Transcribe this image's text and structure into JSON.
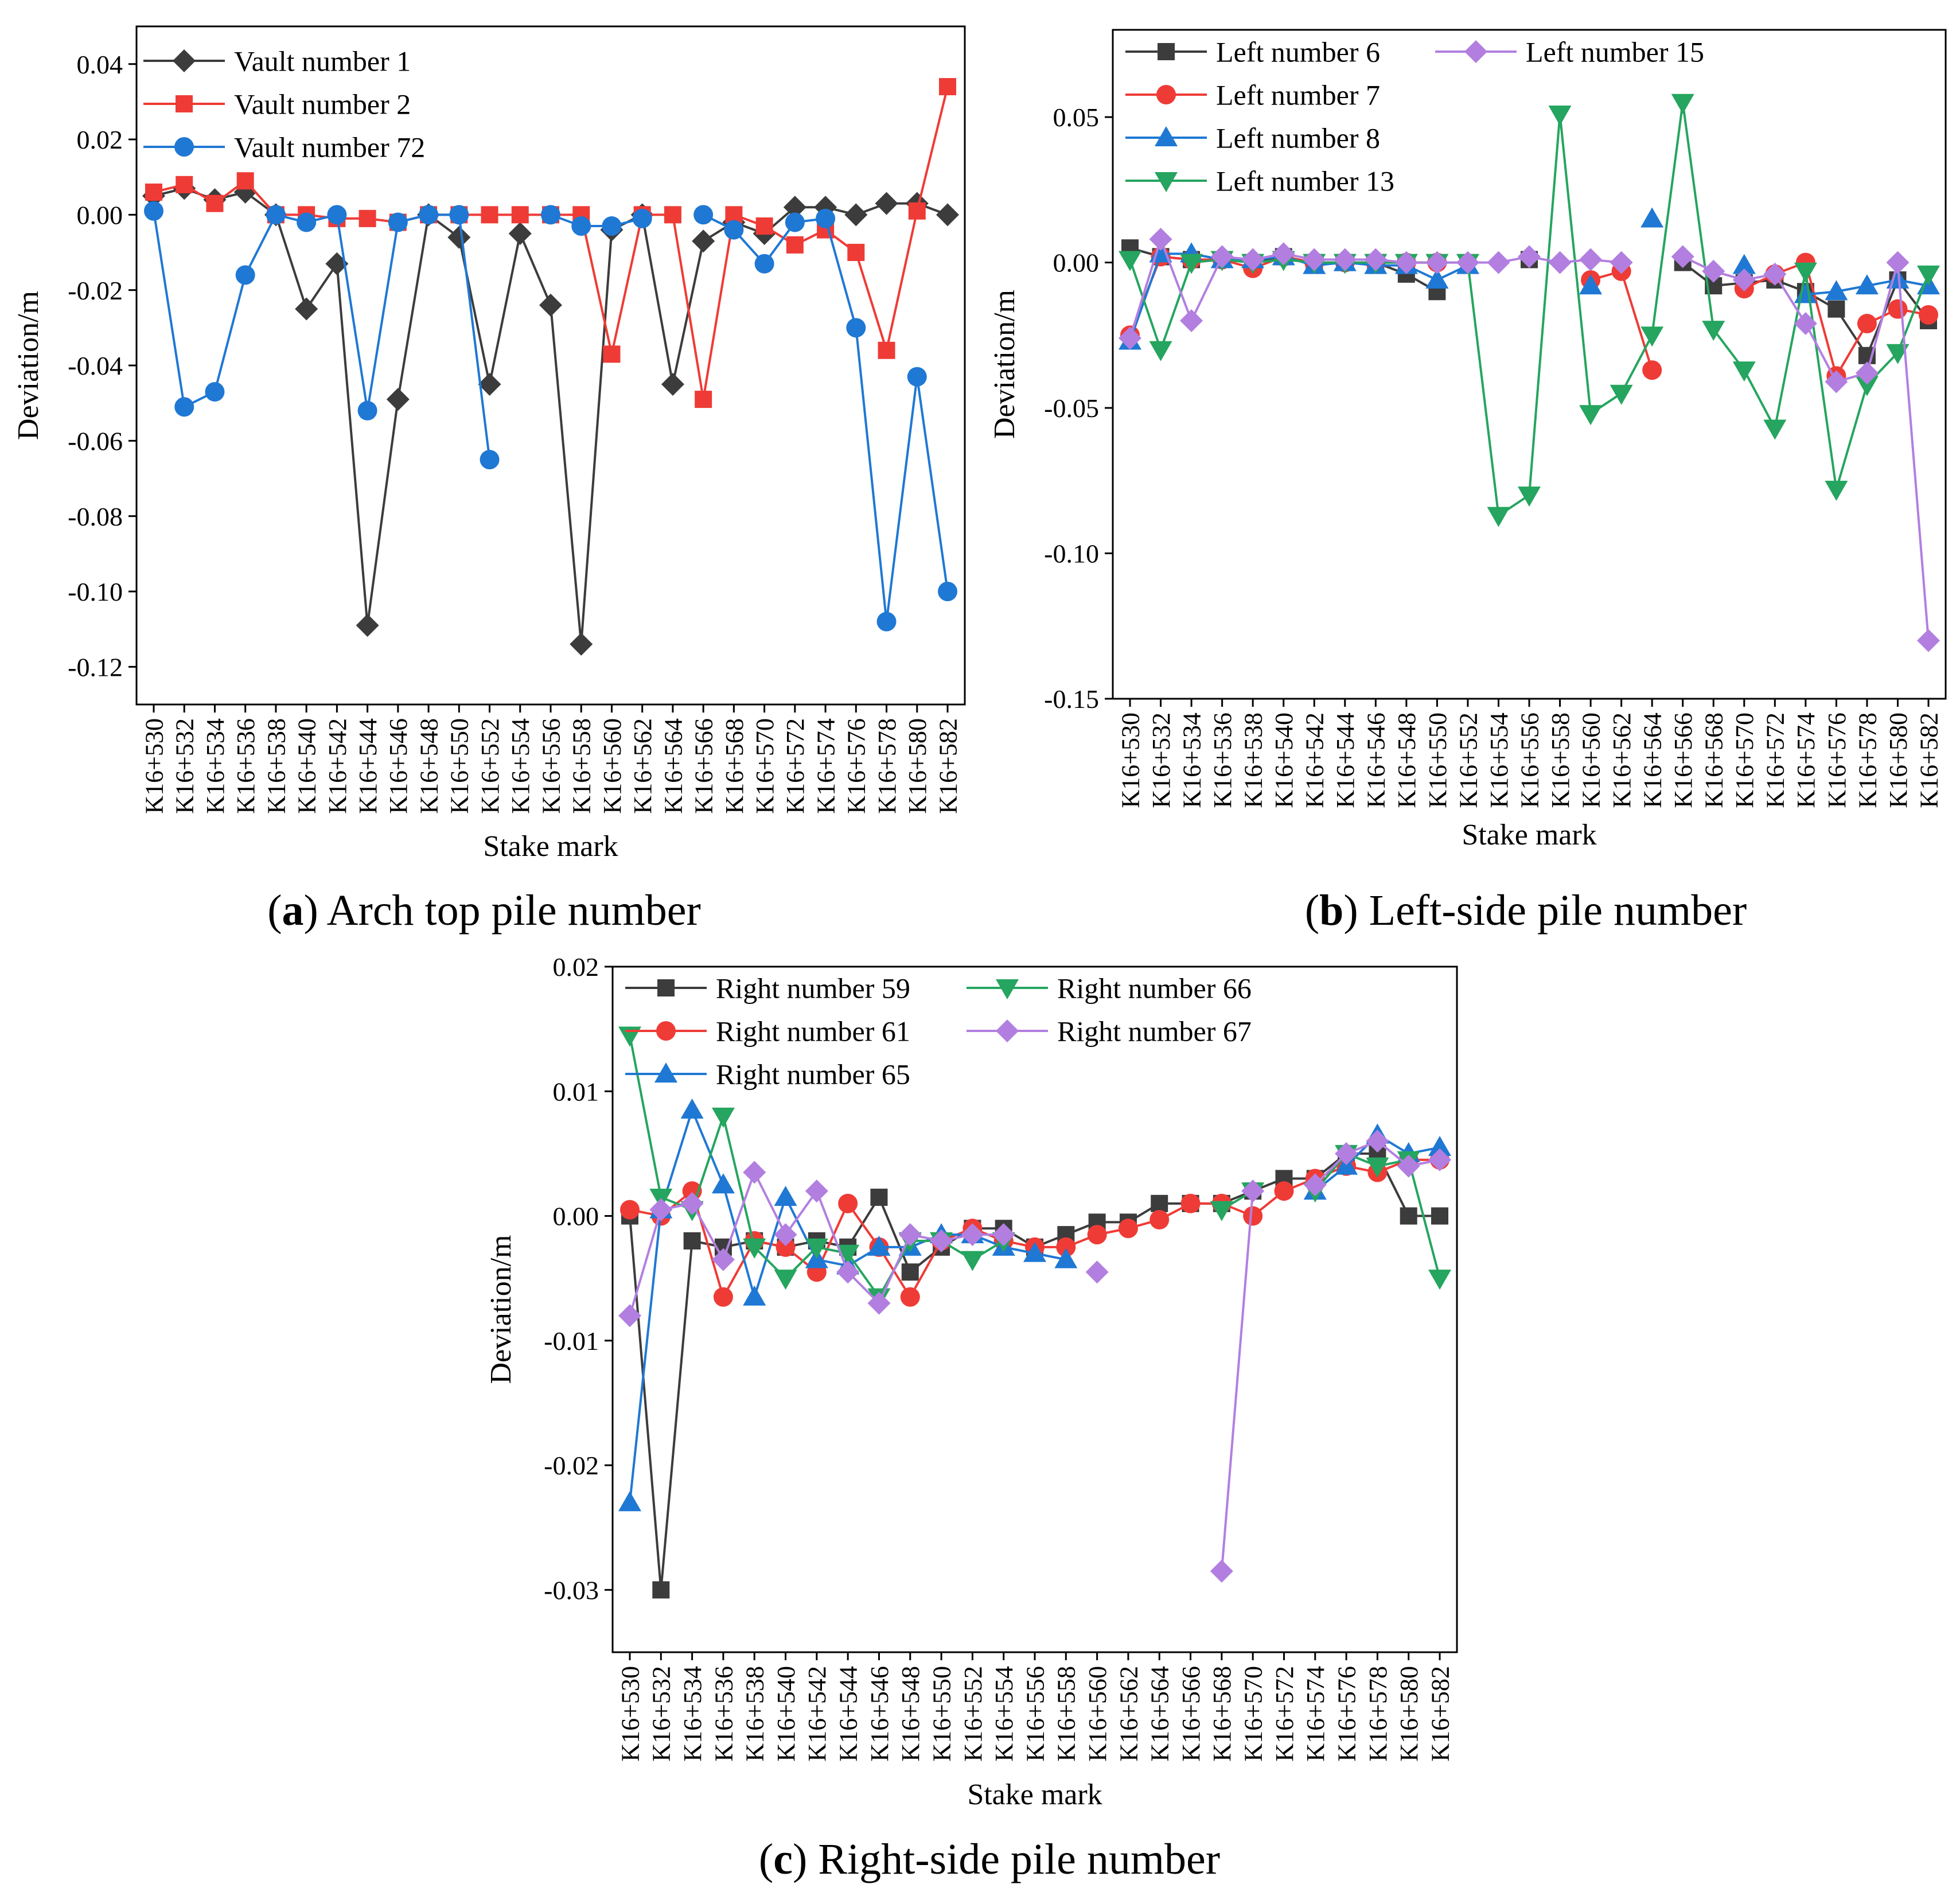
{
  "chart_data": [
    {
      "type": "line",
      "caption_letter": "a",
      "caption_text": "Arch top pile number",
      "xlabel": "Stake mark",
      "ylabel": "Deviation/m",
      "ylim": [
        -0.13,
        0.05
      ],
      "yticks": [
        0.04,
        0.02,
        0.0,
        -0.02,
        -0.04,
        -0.06,
        -0.08,
        -0.1,
        -0.12
      ],
      "ytick_labels": [
        "0.04",
        "0.02",
        "0.00",
        "-0.02",
        "-0.04",
        "-0.06",
        "-0.08",
        "-0.10",
        "-0.12"
      ],
      "categories": [
        "K16+530",
        "K16+532",
        "K16+534",
        "K16+536",
        "K16+538",
        "K16+540",
        "K16+542",
        "K16+544",
        "K16+546",
        "K16+548",
        "K16+550",
        "K16+552",
        "K16+554",
        "K16+556",
        "K16+558",
        "K16+560",
        "K16+562",
        "K16+564",
        "K16+566",
        "K16+568",
        "K16+570",
        "K16+572",
        "K16+574",
        "K16+576",
        "K16+578",
        "K16+580",
        "K16+582"
      ],
      "legend_position": "top-left",
      "grid": false,
      "series": [
        {
          "name": "Vault number 1",
          "color": "#3c3c3c",
          "marker": "diamond",
          "values": [
            0.005,
            0.007,
            0.004,
            0.006,
            0.0,
            -0.025,
            -0.013,
            -0.109,
            -0.049,
            0.0,
            -0.006,
            -0.045,
            -0.005,
            -0.024,
            -0.114,
            -0.004,
            0.0,
            -0.045,
            -0.007,
            -0.002,
            -0.005,
            0.002,
            0.002,
            0.0,
            0.003,
            0.003,
            0.0
          ]
        },
        {
          "name": "Vault number 2",
          "color": "#ef3b36",
          "marker": "square",
          "values": [
            0.006,
            0.008,
            0.003,
            0.009,
            0.0,
            0.0,
            -0.001,
            -0.001,
            -0.002,
            0.0,
            0.0,
            0.0,
            0.0,
            0.0,
            0.0,
            -0.037,
            0.0,
            0.0,
            -0.049,
            0.0,
            -0.003,
            -0.008,
            -0.004,
            -0.01,
            -0.036,
            0.001,
            0.034
          ]
        },
        {
          "name": "Vault number 72",
          "color": "#1f78d4",
          "marker": "circle",
          "values": [
            0.001,
            -0.051,
            -0.047,
            -0.016,
            0.0,
            -0.002,
            0.0,
            -0.052,
            -0.002,
            0.0,
            0.0,
            -0.065,
            null,
            0.0,
            -0.003,
            -0.003,
            -0.001,
            null,
            0.0,
            -0.004,
            -0.013,
            -0.002,
            -0.001,
            -0.03,
            -0.108,
            -0.043,
            -0.1
          ]
        }
      ]
    },
    {
      "type": "line",
      "caption_letter": "b",
      "caption_text": "Left-side pile number",
      "xlabel": "Stake mark",
      "ylabel": "Deviation/m",
      "ylim": [
        -0.15,
        0.08
      ],
      "yticks": [
        0.05,
        0.0,
        -0.05,
        -0.1,
        -0.15
      ],
      "ytick_labels": [
        "0.05",
        "0.00",
        "-0.05",
        "-0.10",
        "-0.15"
      ],
      "categories": [
        "K16+530",
        "K16+532",
        "K16+534",
        "K16+536",
        "K16+538",
        "K16+540",
        "K16+542",
        "K16+544",
        "K16+546",
        "K16+548",
        "K16+550",
        "K16+552",
        "K16+554",
        "K16+556",
        "K16+558",
        "K16+560",
        "K16+562",
        "K16+564",
        "K16+566",
        "K16+568",
        "K16+570",
        "K16+572",
        "K16+574",
        "K16+576",
        "K16+578",
        "K16+580",
        "K16+582"
      ],
      "legend_position": "top",
      "grid": false,
      "series": [
        {
          "name": "Left number 6",
          "color": "#3c3c3c",
          "marker": "square",
          "values": [
            0.005,
            0.002,
            0.001,
            0.001,
            0.0,
            0.002,
            0.0,
            0.0,
            0.0,
            -0.004,
            -0.01,
            null,
            null,
            0.001,
            null,
            null,
            null,
            null,
            0.0,
            -0.008,
            -0.007,
            -0.006,
            -0.01,
            -0.016,
            -0.032,
            -0.006,
            -0.02
          ]
        },
        {
          "name": "Left number 7",
          "color": "#ef3b36",
          "marker": "circle",
          "values": [
            -0.025,
            0.002,
            0.001,
            0.001,
            -0.002,
            0.002,
            0.0,
            0.0,
            0.0,
            0.0,
            0.0,
            null,
            null,
            null,
            null,
            -0.006,
            -0.003,
            -0.037,
            null,
            null,
            -0.009,
            -0.004,
            0.0,
            -0.039,
            -0.021,
            -0.016,
            -0.018
          ]
        },
        {
          "name": "Left number 8",
          "color": "#1f78d4",
          "marker": "triangle-up",
          "values": [
            -0.027,
            0.003,
            0.003,
            0.001,
            0.001,
            0.002,
            -0.001,
            0.0,
            -0.001,
            -0.001,
            -0.006,
            -0.001,
            null,
            null,
            null,
            -0.008,
            null,
            0.015,
            null,
            null,
            -0.001,
            null,
            -0.011,
            -0.01,
            -0.008,
            -0.006,
            -0.008
          ]
        },
        {
          "name": "Left number 13",
          "color": "#25a55f",
          "marker": "triangle-down",
          "values": [
            0.001,
            -0.03,
            0.0,
            0.001,
            0.0,
            0.001,
            0.0,
            0.0,
            0.0,
            0.0,
            0.0,
            0.0,
            -0.087,
            -0.08,
            0.051,
            -0.052,
            -0.045,
            -0.025,
            0.055,
            -0.023,
            -0.037,
            -0.057,
            -0.003,
            -0.078,
            -0.042,
            -0.031,
            -0.004
          ]
        },
        {
          "name": "Left number 15",
          "color": "#b27fe0",
          "marker": "diamond",
          "values": [
            -0.026,
            0.008,
            -0.02,
            0.002,
            0.001,
            0.003,
            0.001,
            0.001,
            0.001,
            0.0,
            0.0,
            0.0,
            0.0,
            0.002,
            0.0,
            0.001,
            0.0,
            null,
            0.002,
            -0.003,
            -0.006,
            -0.004,
            -0.021,
            -0.041,
            -0.038,
            0.0,
            -0.13
          ]
        }
      ]
    },
    {
      "type": "line",
      "caption_letter": "c",
      "caption_text": "Right-side pile number",
      "xlabel": "Stake mark",
      "ylabel": "Deviation/m",
      "ylim": [
        -0.035,
        0.02
      ],
      "yticks": [
        0.02,
        0.01,
        0.0,
        -0.01,
        -0.02,
        -0.03
      ],
      "ytick_labels": [
        "0.02",
        "0.01",
        "0.00",
        "-0.01",
        "-0.02",
        "-0.03"
      ],
      "categories": [
        "K16+530",
        "K16+532",
        "K16+534",
        "K16+536",
        "K16+538",
        "K16+540",
        "K16+542",
        "K16+544",
        "K16+546",
        "K16+548",
        "K16+550",
        "K16+552",
        "K16+554",
        "K16+556",
        "K16+558",
        "K16+560",
        "K16+562",
        "K16+564",
        "K16+566",
        "K16+568",
        "K16+570",
        "K16+572",
        "K16+574",
        "K16+576",
        "K16+578",
        "K16+580",
        "K16+582"
      ],
      "legend_position": "top",
      "grid": false,
      "series": [
        {
          "name": "Right number 59",
          "color": "#3c3c3c",
          "marker": "square",
          "values": [
            0.0,
            -0.03,
            -0.002,
            -0.0025,
            -0.002,
            -0.0025,
            -0.002,
            -0.0025,
            0.0015,
            -0.0045,
            -0.0025,
            -0.001,
            -0.001,
            -0.0025,
            -0.0015,
            -0.0005,
            -0.0005,
            0.001,
            0.001,
            0.001,
            0.002,
            0.003,
            0.003,
            0.005,
            0.005,
            0.0,
            0.0
          ]
        },
        {
          "name": "Right number 61",
          "color": "#ef3b36",
          "marker": "circle",
          "values": [
            0.0005,
            0.0,
            0.002,
            -0.0065,
            -0.002,
            -0.0025,
            -0.0045,
            0.001,
            -0.0025,
            -0.0065,
            -0.002,
            -0.001,
            -0.002,
            -0.0025,
            -0.0025,
            -0.0015,
            -0.001,
            -0.0003,
            0.001,
            0.001,
            0.0,
            0.002,
            0.003,
            0.004,
            0.0035,
            0.0045,
            0.0045
          ]
        },
        {
          "name": "Right number 65",
          "color": "#1f78d4",
          "marker": "triangle-up",
          "values": [
            -0.023,
            0.0005,
            0.0085,
            0.0025,
            -0.0065,
            0.0015,
            -0.0035,
            -0.004,
            -0.0025,
            -0.0025,
            -0.0015,
            -0.0015,
            -0.0025,
            -0.003,
            -0.0035,
            null,
            null,
            null,
            null,
            null,
            null,
            null,
            0.002,
            0.004,
            0.0065,
            0.005,
            0.0055
          ]
        },
        {
          "name": "Right number 66",
          "color": "#25a55f",
          "marker": "triangle-down",
          "values": [
            0.0145,
            0.0015,
            0.0005,
            0.008,
            -0.0025,
            -0.005,
            -0.0025,
            -0.003,
            -0.0065,
            -0.002,
            -0.002,
            -0.0035,
            -0.002,
            null,
            null,
            null,
            null,
            null,
            null,
            0.0005,
            0.002,
            null,
            0.002,
            0.005,
            0.004,
            0.0045,
            -0.005
          ]
        },
        {
          "name": "Right number 67",
          "color": "#b27fe0",
          "marker": "diamond",
          "values": [
            -0.008,
            0.0005,
            0.001,
            -0.0035,
            0.0035,
            -0.0015,
            0.002,
            -0.0045,
            -0.007,
            -0.0015,
            -0.002,
            -0.0015,
            -0.0015,
            null,
            null,
            -0.0045,
            null,
            null,
            null,
            -0.0285,
            0.002,
            null,
            0.0025,
            0.005,
            0.006,
            0.004,
            0.0045
          ]
        }
      ]
    }
  ]
}
